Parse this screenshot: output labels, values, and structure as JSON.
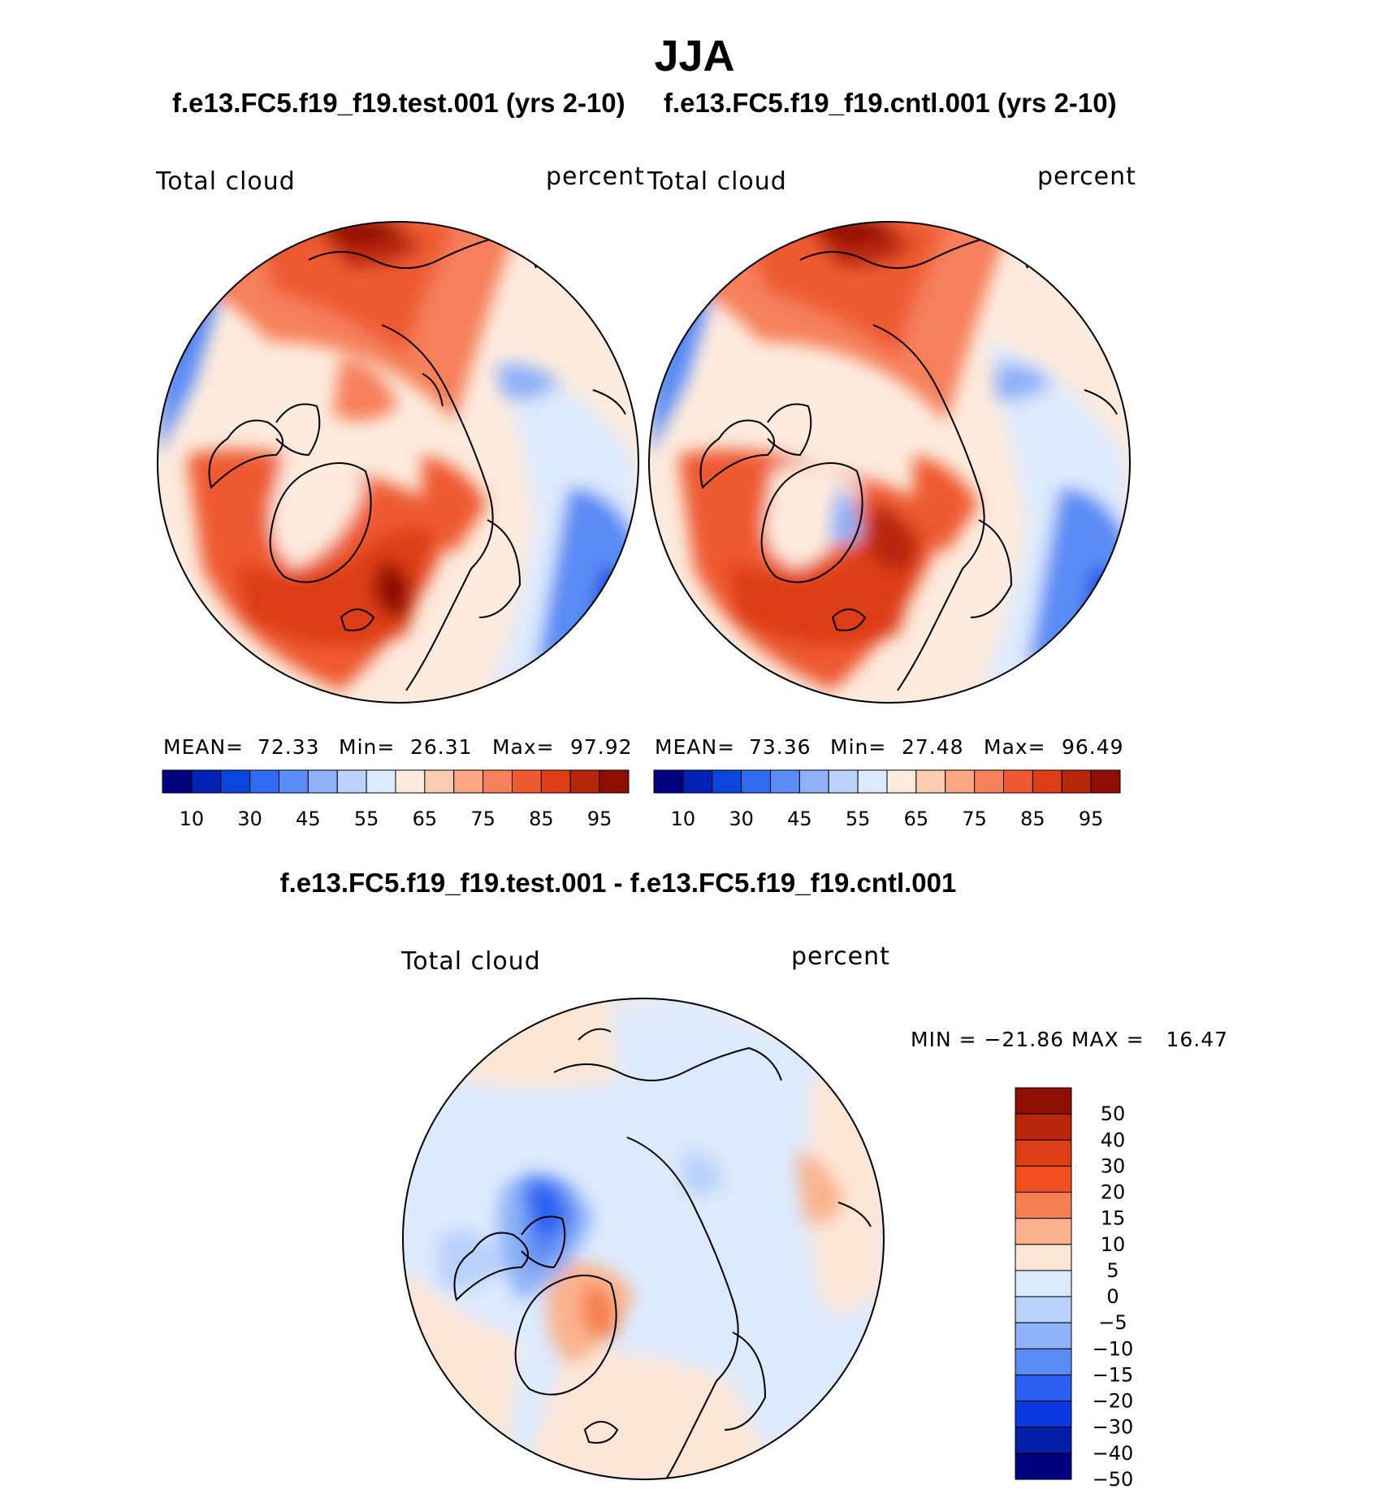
{
  "figure": {
    "season": "JJA",
    "colors": {
      "seq": [
        "#00007f",
        "#0022b4",
        "#0a45dd",
        "#2f6bf0",
        "#5a8cf5",
        "#8fb1f8",
        "#bdd3fb",
        "#ddeafd",
        "#fdebdd",
        "#fcccb2",
        "#fba882",
        "#f6805a",
        "#ee5a32",
        "#dd3d14",
        "#b8260a",
        "#8f0f03"
      ],
      "diff": [
        "#8f0f03",
        "#b8260a",
        "#dd3d14",
        "#f04f1d",
        "#f6804f",
        "#fbb38e",
        "#fde6d6",
        "#ddeafd",
        "#b9d1fb",
        "#8eb1f8",
        "#5b8bf5",
        "#2b5ef2",
        "#0a3adf",
        "#001fa8",
        "#00007f"
      ],
      "coast": "#000000"
    }
  },
  "panels": [
    {
      "case_title": "f.e13.FC5.f19_f19.test.001 (yrs 2-10)",
      "variable": "Total cloud",
      "units": "percent",
      "mean_label": "MEAN=",
      "mean": "72.33",
      "min_label": "Min=",
      "min": "26.31",
      "max_label": "Max=",
      "max": "97.92",
      "colorbar_ticks": [
        "10",
        "30",
        "45",
        "55",
        "65",
        "75",
        "85",
        "95"
      ]
    },
    {
      "case_title": "f.e13.FC5.f19_f19.cntl.001 (yrs 2-10)",
      "variable": "Total cloud",
      "units": "percent",
      "mean_label": "MEAN=",
      "mean": "73.36",
      "min_label": "Min=",
      "min": "27.48",
      "max_label": "Max=",
      "max": "96.49",
      "colorbar_ticks": [
        "10",
        "30",
        "45",
        "55",
        "65",
        "75",
        "85",
        "95"
      ]
    }
  ],
  "difference": {
    "title": "f.e13.FC5.f19_f19.test.001 - f.e13.FC5.f19_f19.cntl.001",
    "variable": "Total cloud",
    "units": "percent",
    "minmax": "MIN = −21.86 MAX =   16.47",
    "colorbar_ticks": [
      "50",
      "40",
      "30",
      "20",
      "15",
      "10",
      "5",
      "0",
      "−5",
      "−10",
      "−15",
      "−20",
      "−30",
      "−40",
      "−50"
    ]
  },
  "chart_data": {
    "type": "heatmap",
    "title": "JJA",
    "description_units": "percent",
    "maps": [
      {
        "name": "f.e13.FC5.f19_f19.test.001 (yrs 2-10)",
        "mean": 72.33,
        "min": 26.31,
        "max": 97.92
      },
      {
        "name": "f.e13.FC5.f19_f19.cntl.001 (yrs 2-10)",
        "mean": 73.36,
        "min": 27.48,
        "max": 96.49
      },
      {
        "name": "f.e13.FC5.f19_f19.test.001 - f.e13.FC5.f19_f19.cntl.001",
        "min": -21.86,
        "max": 16.47
      }
    ],
    "contour_levels_fields": [
      10,
      30,
      45,
      55,
      65,
      75,
      85,
      95
    ],
    "contour_levels_difference": [
      -50,
      -40,
      -30,
      -20,
      -15,
      -10,
      -5,
      0,
      5,
      10,
      15,
      20,
      30,
      40,
      50
    ]
  }
}
